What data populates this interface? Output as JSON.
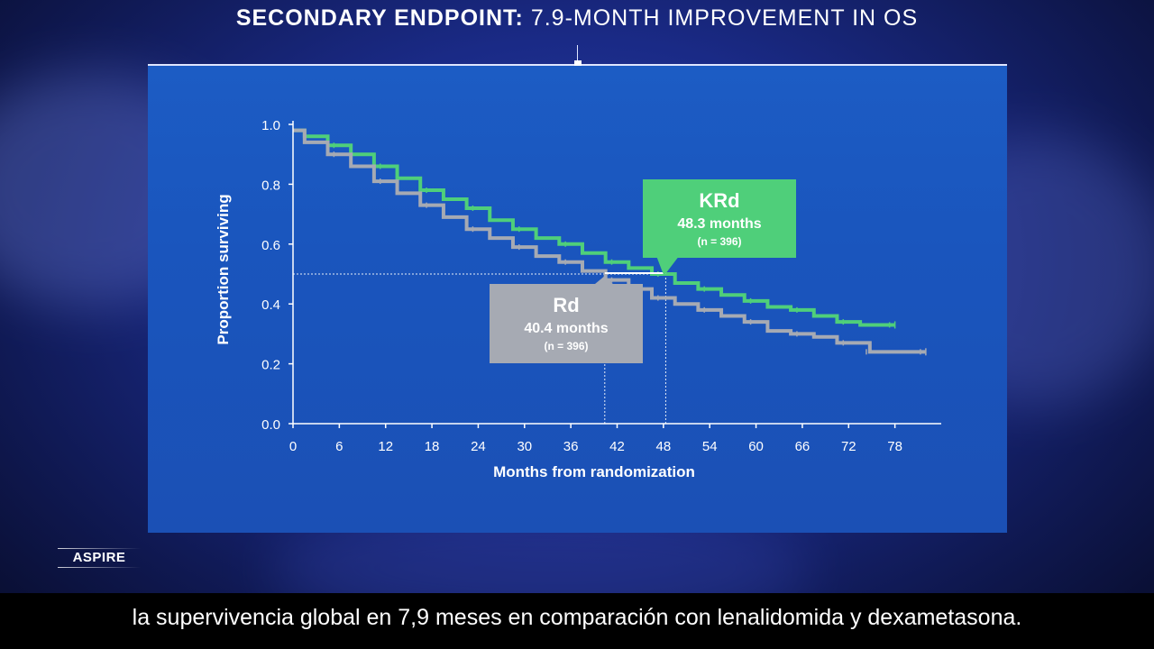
{
  "header": {
    "title_bold": "SECONDARY ENDPOINT:",
    "title_rest": "7.9-MONTH IMPROVEMENT IN OS"
  },
  "badge": {
    "label": "ASPIRE"
  },
  "caption": {
    "text": "la supervivencia global en 7,9 meses en comparación con lenalidomida y dexametasona."
  },
  "colors": {
    "krd": "#4fcf7a",
    "rd": "#a6aab3",
    "axis": "#ffffff",
    "panel": "#1c5bc2"
  },
  "chart_data": {
    "type": "line",
    "title": "",
    "xlabel": "Months from randomization",
    "ylabel": "Proportion surviving",
    "xlim": [
      0,
      84
    ],
    "ylim": [
      0,
      1.0
    ],
    "x_ticks": [
      0,
      6,
      12,
      18,
      24,
      30,
      36,
      42,
      48,
      54,
      60,
      66,
      72,
      78
    ],
    "y_ticks": [
      0.0,
      0.2,
      0.4,
      0.6,
      0.8,
      1.0
    ],
    "y_tick_labels": [
      "0.0",
      "0.2",
      "0.4",
      "0.6",
      "0.8",
      "1.0"
    ],
    "grid": false,
    "series": [
      {
        "name": "KRd",
        "x": [
          0,
          3,
          6,
          9,
          12,
          15,
          18,
          21,
          24,
          27,
          30,
          33,
          36,
          39,
          42,
          45,
          48,
          51,
          54,
          57,
          60,
          63,
          66,
          69,
          72,
          75,
          78
        ],
        "y": [
          0.98,
          0.96,
          0.93,
          0.9,
          0.86,
          0.82,
          0.78,
          0.75,
          0.72,
          0.68,
          0.65,
          0.62,
          0.6,
          0.57,
          0.54,
          0.52,
          0.5,
          0.47,
          0.45,
          0.43,
          0.41,
          0.39,
          0.38,
          0.36,
          0.34,
          0.33,
          0.33
        ]
      },
      {
        "name": "Rd",
        "x": [
          0,
          3,
          6,
          9,
          12,
          15,
          18,
          21,
          24,
          27,
          30,
          33,
          36,
          39,
          42,
          45,
          48,
          51,
          54,
          57,
          60,
          63,
          66,
          69,
          72,
          74.5,
          75,
          78,
          82
        ],
        "y": [
          0.98,
          0.94,
          0.9,
          0.86,
          0.81,
          0.77,
          0.73,
          0.69,
          0.65,
          0.62,
          0.59,
          0.56,
          0.54,
          0.51,
          0.48,
          0.45,
          0.42,
          0.4,
          0.38,
          0.36,
          0.34,
          0.31,
          0.3,
          0.29,
          0.27,
          0.27,
          0.24,
          0.24,
          0.24
        ]
      }
    ],
    "median_line_y": 0.5,
    "annotations": [
      {
        "series": "KRd",
        "median": 48.3,
        "label": "KRd",
        "value_text": "48.3 months",
        "n_text": "(n = 396)"
      },
      {
        "series": "Rd",
        "median": 40.4,
        "label": "Rd",
        "value_text": "40.4 months",
        "n_text": "(n = 396)"
      }
    ]
  }
}
